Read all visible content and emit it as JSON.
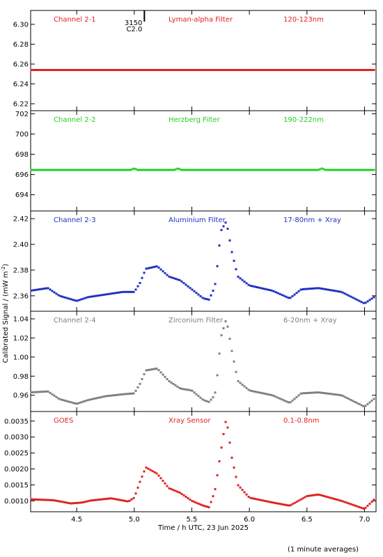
{
  "chart_data": {
    "type": "scatter",
    "xlabel": "Time / h UTC, 23 Jun 2025",
    "ylabel": "Calibrated Signal / (mW m",
    "ylabel_sup": "-2",
    "ylabel_close": ")",
    "footnote": "(1 minute averages)",
    "xlim": [
      4.1,
      7.1
    ],
    "xticks": [
      "4.5",
      "5.0",
      "5.5",
      "6.0",
      "6.5",
      "7.0"
    ],
    "xtick_values": [
      4.5,
      5.0,
      5.5,
      6.0,
      6.5,
      7.0
    ],
    "marker": {
      "x": 5.1,
      "label_top": "3150",
      "label_bottom": "C2.0"
    },
    "panels": [
      {
        "channel": "Channel 2-1",
        "filter": "Lyman-alpha Filter",
        "band": "120-123nm",
        "color": "#e02020",
        "ylim": [
          6.213,
          6.314
        ],
        "yticks": [
          "6.22",
          "6.24",
          "6.26",
          "6.28",
          "6.30"
        ],
        "ytick_values": [
          6.22,
          6.24,
          6.26,
          6.28,
          6.3
        ],
        "x": [
          4.1,
          7.1
        ],
        "y": [
          6.254,
          6.254
        ]
      },
      {
        "channel": "Channel 2-2",
        "filter": "Herzberg Filter",
        "band": "190-222nm",
        "color": "#20d020",
        "ylim": [
          692.4,
          702.3
        ],
        "yticks": [
          "694",
          "696",
          "698",
          "700",
          "702"
        ],
        "ytick_values": [
          694,
          696,
          698,
          700,
          702
        ],
        "x": [
          4.1,
          4.97,
          5.0,
          5.03,
          5.35,
          5.38,
          5.41,
          6.6,
          6.63,
          6.66,
          7.1
        ],
        "y": [
          696.45,
          696.45,
          696.6,
          696.45,
          696.45,
          696.6,
          696.45,
          696.45,
          696.6,
          696.45,
          696.45
        ]
      },
      {
        "channel": "Channel 2-3",
        "filter": "Aluminium Filter",
        "band": "17-80nm + Xray",
        "color": "#2030c0",
        "ylim": [
          2.348,
          2.426
        ],
        "yticks": [
          "2.36",
          "2.38",
          "2.40",
          "2.42"
        ],
        "ytick_values": [
          2.36,
          2.38,
          2.4,
          2.42
        ],
        "x": [
          4.1,
          4.25,
          4.35,
          4.5,
          4.6,
          4.75,
          4.9,
          5.0,
          5.05,
          5.1,
          5.2,
          5.3,
          5.4,
          5.5,
          5.6,
          5.65,
          5.7,
          5.73,
          5.75,
          5.8,
          5.85,
          5.9,
          6.0,
          6.2,
          6.35,
          6.45,
          6.6,
          6.8,
          7.0,
          7.1
        ],
        "y": [
          2.364,
          2.366,
          2.36,
          2.356,
          2.359,
          2.361,
          2.363,
          2.363,
          2.37,
          2.381,
          2.383,
          2.375,
          2.372,
          2.365,
          2.358,
          2.357,
          2.367,
          2.39,
          2.41,
          2.418,
          2.393,
          2.375,
          2.368,
          2.364,
          2.358,
          2.365,
          2.366,
          2.363,
          2.354,
          2.36
        ]
      },
      {
        "channel": "Channel 2-4",
        "filter": "Zirconium Filter",
        "band": "6-20nm + Xray",
        "color": "#808080",
        "ylim": [
          0.943,
          1.048
        ],
        "yticks": [
          "0.96",
          "0.98",
          "1.00",
          "1.02",
          "1.04"
        ],
        "ytick_values": [
          0.96,
          0.98,
          1.0,
          1.02,
          1.04
        ],
        "x": [
          4.1,
          4.25,
          4.35,
          4.5,
          4.6,
          4.75,
          4.9,
          5.0,
          5.05,
          5.1,
          5.2,
          5.3,
          5.4,
          5.5,
          5.6,
          5.65,
          5.7,
          5.73,
          5.75,
          5.8,
          5.85,
          5.9,
          6.0,
          6.2,
          6.35,
          6.45,
          6.6,
          6.8,
          7.0,
          7.1
        ],
        "y": [
          0.963,
          0.964,
          0.956,
          0.951,
          0.955,
          0.959,
          0.961,
          0.962,
          0.972,
          0.986,
          0.988,
          0.975,
          0.967,
          0.965,
          0.955,
          0.953,
          0.96,
          0.99,
          1.02,
          1.04,
          1.005,
          0.975,
          0.965,
          0.96,
          0.952,
          0.962,
          0.963,
          0.96,
          0.948,
          0.958
        ]
      },
      {
        "channel": "GOES",
        "filter": "Xray Sensor",
        "band": "0.1-0.8nm",
        "color": "#e02020",
        "ylim": [
          0.00066,
          0.0038
        ],
        "yticks": [
          "0.0010",
          "0.0015",
          "0.0020",
          "0.0025",
          "0.0030",
          "0.0035"
        ],
        "ytick_values": [
          0.001,
          0.0015,
          0.002,
          0.0025,
          0.003,
          0.0035
        ],
        "x": [
          4.1,
          4.3,
          4.45,
          4.55,
          4.62,
          4.8,
          4.95,
          5.0,
          5.05,
          5.1,
          5.2,
          5.3,
          5.4,
          5.5,
          5.6,
          5.65,
          5.7,
          5.75,
          5.78,
          5.8,
          5.85,
          5.9,
          6.0,
          6.2,
          6.35,
          6.5,
          6.6,
          6.8,
          7.0,
          7.1
        ],
        "y": [
          0.00105,
          0.00102,
          0.00092,
          0.00095,
          0.00101,
          0.00108,
          0.00098,
          0.0011,
          0.0016,
          0.00205,
          0.00185,
          0.0014,
          0.00125,
          0.001,
          0.00085,
          0.0008,
          0.0013,
          0.0025,
          0.0032,
          0.0036,
          0.0023,
          0.0015,
          0.0011,
          0.00095,
          0.00085,
          0.00115,
          0.0012,
          0.001,
          0.00075,
          0.0011
        ]
      }
    ]
  }
}
